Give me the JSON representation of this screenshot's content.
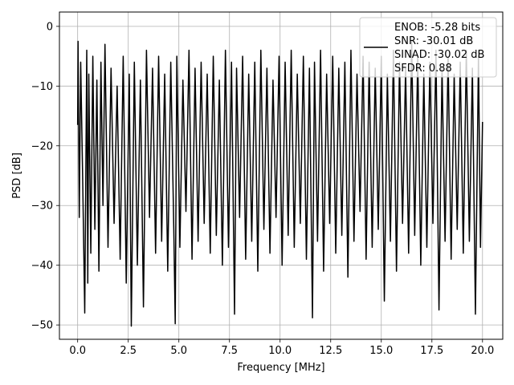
{
  "chart_data": {
    "type": "line",
    "xlabel": "Frequency [MHz]",
    "ylabel": "PSD [dB]",
    "xlim": [
      -0.9,
      21.0
    ],
    "ylim": [
      -52.4,
      2.4
    ],
    "x_ticks": [
      0.0,
      2.5,
      5.0,
      7.5,
      10.0,
      12.5,
      15.0,
      17.5,
      20.0
    ],
    "x_tick_labels": [
      "0.0",
      "2.5",
      "5.0",
      "7.5",
      "10.0",
      "12.5",
      "15.0",
      "17.5",
      "20.0"
    ],
    "y_ticks": [
      0,
      -10,
      -20,
      -30,
      -40,
      -50
    ],
    "y_tick_labels": [
      "0",
      "−10",
      "−20",
      "−30",
      "−40",
      "−50"
    ],
    "grid": true,
    "legend_position": "top-right",
    "legend_lines": [
      "ENOB: -5.28 bits",
      "SNR: -30.01 dB",
      "SINAD: -30.02 dB",
      "SFDR: 0.88"
    ],
    "series": [
      {
        "color": "#000000",
        "x": [
          0.0,
          0.02,
          0.08,
          0.15,
          0.25,
          0.35,
          0.45,
          0.5,
          0.55,
          0.65,
          0.75,
          0.85,
          0.95,
          1.05,
          1.15,
          1.25,
          1.35,
          1.5,
          1.65,
          1.8,
          1.95,
          2.1,
          2.25,
          2.4,
          2.55,
          2.65,
          2.8,
          2.95,
          3.1,
          3.25,
          3.4,
          3.55,
          3.7,
          3.85,
          4.0,
          4.15,
          4.3,
          4.45,
          4.6,
          4.75,
          4.82,
          4.9,
          5.05,
          5.2,
          5.35,
          5.5,
          5.65,
          5.8,
          5.95,
          6.1,
          6.25,
          6.4,
          6.55,
          6.7,
          6.85,
          7.0,
          7.15,
          7.3,
          7.45,
          7.6,
          7.75,
          7.85,
          8.0,
          8.15,
          8.3,
          8.45,
          8.6,
          8.75,
          8.9,
          9.05,
          9.2,
          9.35,
          9.5,
          9.65,
          9.8,
          9.95,
          10.1,
          10.25,
          10.4,
          10.55,
          10.7,
          10.85,
          11.0,
          11.15,
          11.3,
          11.45,
          11.6,
          11.7,
          11.85,
          12.0,
          12.15,
          12.3,
          12.45,
          12.6,
          12.75,
          12.9,
          13.05,
          13.2,
          13.35,
          13.5,
          13.65,
          13.8,
          13.95,
          14.1,
          14.25,
          14.4,
          14.55,
          14.7,
          14.85,
          15.0,
          15.15,
          15.3,
          15.45,
          15.6,
          15.75,
          15.9,
          16.05,
          16.2,
          16.35,
          16.5,
          16.65,
          16.8,
          16.95,
          17.1,
          17.25,
          17.4,
          17.55,
          17.7,
          17.85,
          18.0,
          18.15,
          18.3,
          18.45,
          18.6,
          18.75,
          18.9,
          19.05,
          19.2,
          19.35,
          19.5,
          19.65,
          19.8,
          19.9,
          20.0
        ],
        "y": [
          -16.5,
          -2.5,
          -32.0,
          -6.0,
          -26.0,
          -48.0,
          -4.0,
          -43.0,
          -8.0,
          -38.0,
          -5.0,
          -34.0,
          -9.0,
          -41.0,
          -6.0,
          -30.0,
          -3.0,
          -37.0,
          -7.0,
          -33.0,
          -10.0,
          -39.0,
          -5.0,
          -43.0,
          -8.0,
          -50.2,
          -6.0,
          -40.0,
          -9.0,
          -47.0,
          -4.0,
          -32.0,
          -7.0,
          -38.0,
          -5.0,
          -36.0,
          -8.0,
          -41.0,
          -6.0,
          -34.0,
          -49.8,
          -5.0,
          -37.0,
          -9.0,
          -31.0,
          -4.0,
          -39.0,
          -7.0,
          -36.0,
          -6.0,
          -33.0,
          -8.0,
          -38.0,
          -5.0,
          -35.0,
          -9.0,
          -40.0,
          -4.0,
          -37.0,
          -6.0,
          -48.2,
          -7.0,
          -32.0,
          -5.0,
          -39.0,
          -8.0,
          -36.0,
          -6.0,
          -41.0,
          -4.0,
          -34.0,
          -7.0,
          -38.0,
          -9.0,
          -32.0,
          -5.0,
          -40.0,
          -6.0,
          -35.0,
          -4.0,
          -37.0,
          -8.0,
          -33.0,
          -5.0,
          -39.0,
          -7.0,
          -48.8,
          -6.0,
          -36.0,
          -4.0,
          -41.0,
          -8.0,
          -33.0,
          -5.0,
          -38.0,
          -7.0,
          -35.0,
          -6.0,
          -42.0,
          -4.0,
          -36.0,
          -8.0,
          -31.0,
          -5.0,
          -39.0,
          -6.0,
          -37.0,
          -7.0,
          -34.0,
          -5.0,
          -46.0,
          -8.0,
          -36.0,
          -4.0,
          -41.0,
          -6.0,
          -33.0,
          -7.0,
          -38.0,
          -2.5,
          -35.0,
          -5.0,
          -40.0,
          -8.0,
          -37.0,
          -6.0,
          -33.0,
          -4.0,
          -47.5,
          -7.0,
          -36.0,
          -5.0,
          -39.0,
          -8.0,
          -34.0,
          -6.0,
          -38.0,
          -4.0,
          -36.0,
          -7.0,
          -48.2,
          -5.0,
          -37.0,
          -16.0
        ]
      }
    ]
  }
}
